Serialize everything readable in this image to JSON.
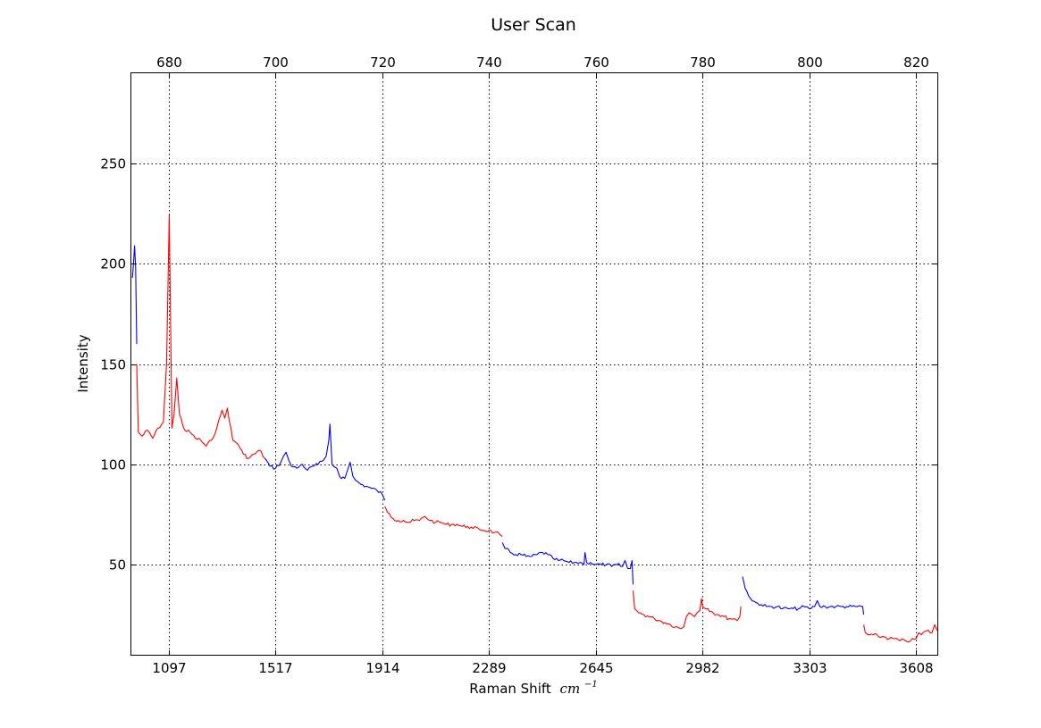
{
  "chart_data": {
    "type": "line",
    "title": "User Scan",
    "xlabel": "Raman Shift",
    "xlabel_unit": "cm",
    "xlabel_unit_exp": "−1",
    "ylabel": "Intensity",
    "xlim_pixel": [
      673,
      824
    ],
    "top_axis": {
      "ticks": [
        680,
        700,
        720,
        740,
        760,
        780,
        800,
        820
      ]
    },
    "bottom_axis": {
      "tick_labels": [
        "1097",
        "1517",
        "1914",
        "2289",
        "2645",
        "2982",
        "3303",
        "3608"
      ]
    },
    "ylim": [
      5,
      295
    ],
    "yticks": [
      50,
      100,
      150,
      200,
      250
    ],
    "grid": true,
    "colors": {
      "red": "#ff0000",
      "blue": "#0000ff"
    },
    "segments": [
      {
        "color": "blue",
        "points": [
          [
            673.2,
            193
          ],
          [
            673.4,
            200
          ],
          [
            673.6,
            209
          ],
          [
            673.8,
            198
          ],
          [
            674.0,
            160
          ]
        ]
      },
      {
        "color": "red",
        "points": [
          [
            674.0,
            150
          ],
          [
            674.3,
            116
          ],
          [
            675.0,
            114
          ],
          [
            676.0,
            117
          ],
          [
            677.0,
            113
          ],
          [
            678.0,
            118
          ],
          [
            679.0,
            121
          ],
          [
            679.6,
            150
          ],
          [
            680.1,
            224
          ],
          [
            680.6,
            118
          ],
          [
            681.0,
            125
          ],
          [
            681.5,
            143
          ],
          [
            682.0,
            125
          ],
          [
            683.0,
            117
          ],
          [
            684.0,
            116
          ],
          [
            685.0,
            113
          ],
          [
            686.0,
            112
          ],
          [
            687.0,
            109
          ],
          [
            688.0,
            112
          ],
          [
            689.0,
            118
          ],
          [
            690.0,
            127
          ],
          [
            690.5,
            123
          ],
          [
            691.0,
            128
          ],
          [
            692.0,
            112
          ],
          [
            693.0,
            110
          ],
          [
            694.0,
            105
          ],
          [
            695.0,
            103
          ],
          [
            696.0,
            105
          ],
          [
            697.0,
            107
          ],
          [
            698.0,
            103
          ]
        ]
      },
      {
        "color": "blue",
        "points": [
          [
            698.0,
            103
          ],
          [
            699.0,
            99
          ],
          [
            700.0,
            98
          ],
          [
            701.0,
            101
          ],
          [
            701.5,
            104
          ],
          [
            702.0,
            106
          ],
          [
            702.5,
            102
          ],
          [
            703.0,
            99
          ],
          [
            704.0,
            98
          ],
          [
            705.0,
            100
          ],
          [
            706.0,
            97
          ],
          [
            707.0,
            99
          ],
          [
            708.0,
            100
          ],
          [
            709.0,
            102
          ],
          [
            709.5,
            104
          ],
          [
            710.0,
            112
          ],
          [
            710.2,
            120
          ],
          [
            710.6,
            100
          ],
          [
            711.5,
            98
          ],
          [
            712.0,
            94
          ],
          [
            713.0,
            93
          ],
          [
            713.5,
            97
          ],
          [
            714.0,
            101
          ],
          [
            714.5,
            94
          ],
          [
            715.0,
            92
          ],
          [
            716.0,
            90
          ],
          [
            717.0,
            89
          ],
          [
            718.0,
            88
          ],
          [
            719.0,
            87
          ],
          [
            720.0,
            85
          ],
          [
            720.5,
            82
          ]
        ]
      },
      {
        "color": "red",
        "points": [
          [
            720.5,
            79
          ],
          [
            721.0,
            76
          ],
          [
            722.0,
            73
          ],
          [
            723.0,
            72
          ],
          [
            724.0,
            72
          ],
          [
            725.0,
            71
          ],
          [
            726.0,
            72
          ],
          [
            727.0,
            72
          ],
          [
            728.0,
            74
          ],
          [
            729.0,
            72
          ],
          [
            730.0,
            71
          ],
          [
            731.0,
            71
          ],
          [
            732.0,
            70
          ],
          [
            733.0,
            70
          ],
          [
            734.0,
            70
          ],
          [
            735.0,
            69
          ],
          [
            736.0,
            69
          ],
          [
            737.0,
            68
          ],
          [
            738.0,
            68
          ],
          [
            739.0,
            67
          ],
          [
            740.0,
            67
          ],
          [
            741.0,
            66
          ],
          [
            742.0,
            65
          ],
          [
            742.5,
            64
          ]
        ]
      },
      {
        "color": "blue",
        "points": [
          [
            742.5,
            61
          ],
          [
            743.0,
            58
          ],
          [
            744.0,
            56
          ],
          [
            745.0,
            55
          ],
          [
            746.0,
            55
          ],
          [
            747.0,
            54
          ],
          [
            748.0,
            54
          ],
          [
            749.0,
            55
          ],
          [
            750.0,
            56
          ],
          [
            751.0,
            55
          ],
          [
            752.0,
            53
          ],
          [
            753.0,
            52
          ],
          [
            754.0,
            52
          ],
          [
            755.0,
            51
          ],
          [
            756.0,
            51
          ],
          [
            757.0,
            51
          ],
          [
            757.8,
            50
          ],
          [
            758.0,
            56
          ],
          [
            758.3,
            51
          ],
          [
            759.0,
            51
          ],
          [
            760.0,
            50
          ],
          [
            761.0,
            50
          ],
          [
            762.0,
            50
          ],
          [
            763.0,
            49
          ],
          [
            764.0,
            50
          ],
          [
            765.0,
            49
          ],
          [
            765.5,
            52
          ],
          [
            766.0,
            48
          ],
          [
            766.5,
            48
          ],
          [
            766.8,
            52
          ],
          [
            767.0,
            40
          ]
        ]
      },
      {
        "color": "red",
        "points": [
          [
            767.0,
            37
          ],
          [
            767.3,
            28
          ],
          [
            768.0,
            26
          ],
          [
            769.0,
            25
          ],
          [
            770.0,
            24
          ],
          [
            771.0,
            23
          ],
          [
            772.0,
            22
          ],
          [
            773.0,
            21
          ],
          [
            774.0,
            20
          ],
          [
            775.0,
            19
          ],
          [
            776.0,
            18
          ],
          [
            776.5,
            19
          ],
          [
            777.0,
            24
          ],
          [
            777.5,
            26
          ],
          [
            778.0,
            25
          ],
          [
            778.5,
            24
          ],
          [
            779.0,
            26
          ],
          [
            779.5,
            27
          ],
          [
            779.8,
            33
          ],
          [
            780.0,
            29
          ],
          [
            781.0,
            28
          ],
          [
            782.0,
            26
          ],
          [
            783.0,
            25
          ],
          [
            784.0,
            24
          ],
          [
            785.0,
            23
          ],
          [
            786.0,
            23
          ],
          [
            786.5,
            22
          ],
          [
            787.0,
            24
          ],
          [
            787.2,
            29
          ]
        ]
      },
      {
        "color": "blue",
        "points": [
          [
            787.5,
            44
          ],
          [
            788.0,
            38
          ],
          [
            789.0,
            33
          ],
          [
            790.0,
            31
          ],
          [
            791.0,
            30
          ],
          [
            792.0,
            29
          ],
          [
            793.0,
            29
          ],
          [
            794.0,
            29
          ],
          [
            795.0,
            28
          ],
          [
            796.0,
            28
          ],
          [
            797.0,
            28
          ],
          [
            798.0,
            28
          ],
          [
            799.0,
            29
          ],
          [
            800.0,
            28
          ],
          [
            801.0,
            29
          ],
          [
            801.5,
            32
          ],
          [
            802.0,
            29
          ],
          [
            803.0,
            29
          ],
          [
            804.0,
            29
          ],
          [
            805.0,
            29
          ],
          [
            806.0,
            29
          ],
          [
            807.0,
            29
          ],
          [
            808.0,
            29
          ],
          [
            809.0,
            29
          ],
          [
            810.0,
            29
          ],
          [
            810.2,
            25
          ]
        ]
      },
      {
        "color": "red",
        "points": [
          [
            810.2,
            20
          ],
          [
            810.5,
            16
          ],
          [
            811.0,
            15
          ],
          [
            812.0,
            15
          ],
          [
            813.0,
            14
          ],
          [
            814.0,
            14
          ],
          [
            815.0,
            13
          ],
          [
            816.0,
            13
          ],
          [
            817.0,
            12
          ],
          [
            818.0,
            12
          ],
          [
            819.0,
            12
          ],
          [
            820.0,
            13
          ],
          [
            820.5,
            16
          ],
          [
            821.0,
            15
          ],
          [
            822.0,
            17
          ],
          [
            823.0,
            16
          ],
          [
            823.5,
            20
          ],
          [
            824.0,
            17
          ]
        ]
      }
    ]
  }
}
